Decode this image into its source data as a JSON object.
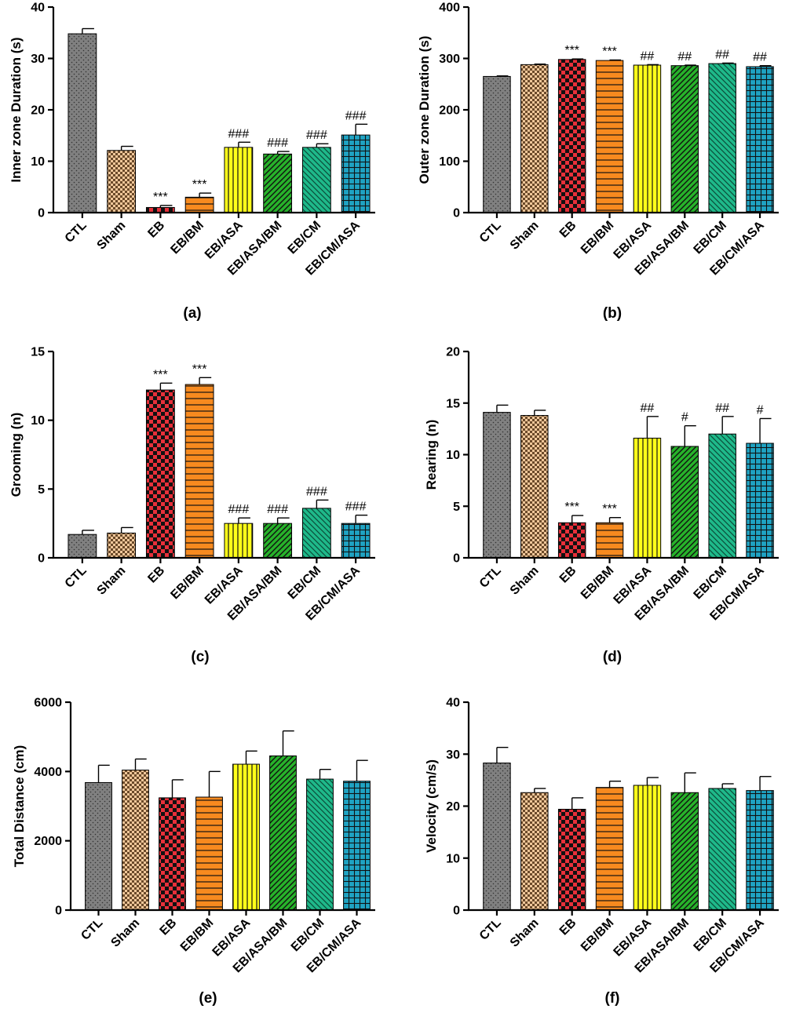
{
  "colors": {
    "CTL": "#808080",
    "Sham": "#f0c79a",
    "EB": "#e8303a",
    "EB/BM": "#f78a1f",
    "EB/ASA": "#ffff1a",
    "EB/ASA/BM": "#27b22a",
    "EB/CM": "#1fb98a",
    "EB/CM/ASA": "#1fa3c3"
  },
  "patterns": {
    "CTL": "dots",
    "Sham": "checker-small",
    "EB": "checker-big",
    "EB/BM": "horizontal",
    "EB/ASA": "vertical",
    "EB/ASA/BM": "diag-up",
    "EB/CM": "diag-down",
    "EB/CM/ASA": "grid"
  },
  "chart_data": [
    {
      "type": "bar",
      "panel_label": "(a)",
      "ylabel": "Inner zone Duration (s)",
      "ylim": [
        0,
        40
      ],
      "yticks": [
        "0",
        "10",
        "20",
        "30",
        "40"
      ],
      "categories": [
        "CTL",
        "Sham",
        "EB",
        "EB/BM",
        "EB/ASA",
        "EB/ASA/BM",
        "EB/CM",
        "EB/CM/ASA"
      ],
      "values": [
        34.8,
        12.1,
        1.0,
        3.0,
        12.7,
        11.4,
        12.7,
        15.1
      ],
      "errors": [
        1.0,
        0.8,
        0.4,
        0.8,
        1.0,
        0.5,
        0.7,
        2.1
      ],
      "annotations": [
        "",
        "",
        "***",
        "***",
        "###",
        "###",
        "###",
        "###"
      ]
    },
    {
      "type": "bar",
      "panel_label": "(b)",
      "ylabel": "Outer zone Duration (s)",
      "ylim": [
        0,
        400
      ],
      "yticks": [
        "0",
        "100",
        "200",
        "300",
        "400"
      ],
      "categories": [
        "CTL",
        "Sham",
        "EB",
        "EB/BM",
        "EB/ASA",
        "EB/ASA/BM",
        "EB/CM",
        "EB/CM/ASA"
      ],
      "values": [
        265,
        288,
        298,
        296,
        287,
        286,
        290,
        284
      ],
      "errors": [
        1,
        1,
        1,
        1,
        1,
        1,
        1,
        2
      ],
      "annotations": [
        "",
        "",
        "***",
        "***",
        "##",
        "##",
        "##",
        "##"
      ]
    },
    {
      "type": "bar",
      "panel_label": "(c)",
      "ylabel": "Grooming (n)",
      "ylim": [
        0,
        15
      ],
      "yticks": [
        "0",
        "5",
        "10",
        "15"
      ],
      "categories": [
        "CTL",
        "Sham",
        "EB",
        "EB/BM",
        "EB/ASA",
        "EB/ASA/BM",
        "EB/CM",
        "EB/CM/ASA"
      ],
      "values": [
        1.7,
        1.8,
        12.2,
        12.6,
        2.5,
        2.5,
        3.6,
        2.5
      ],
      "errors": [
        0.3,
        0.4,
        0.5,
        0.5,
        0.4,
        0.4,
        0.6,
        0.6
      ],
      "annotations": [
        "",
        "",
        "***",
        "***",
        "###",
        "###",
        "###",
        "###"
      ]
    },
    {
      "type": "bar",
      "panel_label": "(d)",
      "ylabel": "Rearing (n)",
      "ylim": [
        0,
        20
      ],
      "yticks": [
        "0",
        "5",
        "10",
        "15",
        "20"
      ],
      "categories": [
        "CTL",
        "Sham",
        "EB",
        "EB/BM",
        "EB/ASA",
        "EB/ASA/BM",
        "EB/CM",
        "EB/CM/ASA"
      ],
      "values": [
        14.1,
        13.8,
        3.4,
        3.4,
        11.6,
        10.8,
        12.0,
        11.1
      ],
      "errors": [
        0.7,
        0.5,
        0.7,
        0.5,
        2.1,
        2.0,
        1.7,
        2.4
      ],
      "annotations": [
        "",
        "",
        "***",
        "***",
        "##",
        "#",
        "##",
        "#"
      ]
    },
    {
      "type": "bar",
      "panel_label": "(e)",
      "ylabel": "Total Distance (cm)",
      "ylim": [
        0,
        6000
      ],
      "yticks": [
        "0",
        "2000",
        "4000",
        "6000"
      ],
      "categories": [
        "CTL",
        "Sham",
        "EB",
        "EB/BM",
        "EB/ASA",
        "EB/ASA/BM",
        "EB/CM",
        "EB/CM/ASA"
      ],
      "values": [
        3680,
        4040,
        3240,
        3260,
        4210,
        4450,
        3780,
        3720
      ],
      "errors": [
        500,
        320,
        520,
        740,
        380,
        720,
        280,
        600
      ],
      "annotations": [
        "",
        "",
        "",
        "",
        "",
        "",
        "",
        ""
      ]
    },
    {
      "type": "bar",
      "panel_label": "(f)",
      "ylabel": "Velocity (cm/s)",
      "ylim": [
        0,
        40
      ],
      "yticks": [
        "0",
        "10",
        "20",
        "30",
        "40"
      ],
      "categories": [
        "CTL",
        "Sham",
        "EB",
        "EB/BM",
        "EB/ASA",
        "EB/ASA/BM",
        "EB/CM",
        "EB/CM/ASA"
      ],
      "values": [
        28.3,
        22.6,
        19.4,
        23.6,
        24.0,
        22.6,
        23.4,
        23.0
      ],
      "errors": [
        3.0,
        0.8,
        2.2,
        1.2,
        1.5,
        3.8,
        0.9,
        2.7
      ],
      "annotations": [
        "",
        "",
        "",
        "",
        "",
        "",
        "",
        ""
      ]
    }
  ]
}
